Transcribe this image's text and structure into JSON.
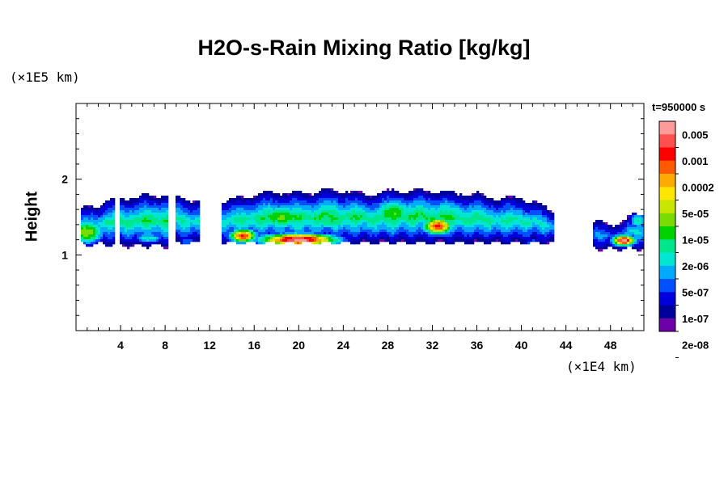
{
  "chart_data": {
    "type": "heatmap",
    "title": "H2O-s-Rain Mixing Ratio [kg/kg]",
    "ylabel": "Height",
    "y_unit": "(×1E5 km)",
    "x_unit": "(×1E4 km)",
    "time_label": "t=950000 s",
    "xlim": [
      0,
      51
    ],
    "ylim": [
      0,
      3
    ],
    "x_ticks": [
      "4",
      "8",
      "12",
      "16",
      "20",
      "24",
      "28",
      "32",
      "36",
      "40",
      "44",
      "48"
    ],
    "y_ticks": [
      "1",
      "2"
    ],
    "colorbar": {
      "labels": [
        "0.005",
        "0.001",
        "0.0002",
        "5e-05",
        "1e-05",
        "2e-06",
        "5e-07",
        "1e-07",
        "2e-08"
      ],
      "colors": [
        "#ff9a9a",
        "#ff5050",
        "#ff0000",
        "#ff5a00",
        "#ffaa00",
        "#ffe600",
        "#c8e600",
        "#78dc00",
        "#00d200",
        "#00e68c",
        "#00e6d2",
        "#00aaff",
        "#0050ff",
        "#0000dc",
        "#00009b",
        "#6e00aa"
      ]
    },
    "region": {
      "approx_height_range": [
        1.1,
        1.9
      ],
      "features": [
        {
          "x": [
            0,
            3
          ],
          "y": [
            1.15,
            1.5
          ],
          "level": "5e-05"
        },
        {
          "x": [
            15,
            15.5
          ],
          "y": [
            1.2,
            1.3
          ],
          "level": "0.001"
        },
        {
          "x": [
            19.5,
            20.5
          ],
          "y": [
            1.15,
            1.25
          ],
          "level": "0.005"
        },
        {
          "x": [
            32,
            33
          ],
          "y": [
            1.3,
            1.45
          ],
          "level": "0.001"
        },
        {
          "x": [
            49,
            50
          ],
          "y": [
            1.15,
            1.25
          ],
          "level": "0.005"
        }
      ]
    }
  }
}
